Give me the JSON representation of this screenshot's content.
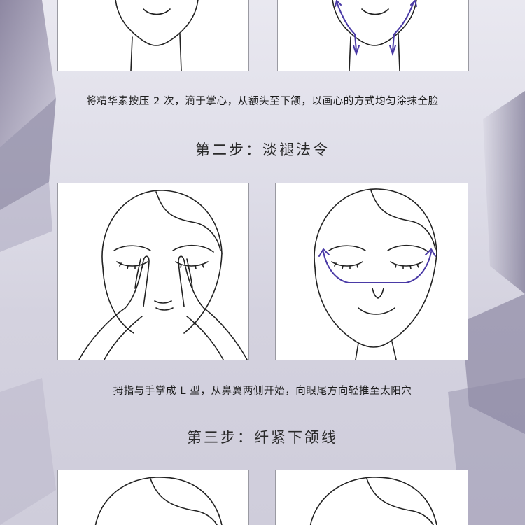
{
  "caption_1": "将精华素按压 2 次，滴于掌心，从额头至下颌，以画心的方式均匀涂抹全脸",
  "step_2_title": "第二步：淡褪法令",
  "caption_2": "拇指与手掌成 L 型，从鼻翼两侧开始，向眼尾方向轻推至太阳穴",
  "step_3_title": "第三步：纤紧下颌线",
  "colors": {
    "background": "#dedde8",
    "accent_purple": "#4a3aa6",
    "line": "#222222"
  }
}
